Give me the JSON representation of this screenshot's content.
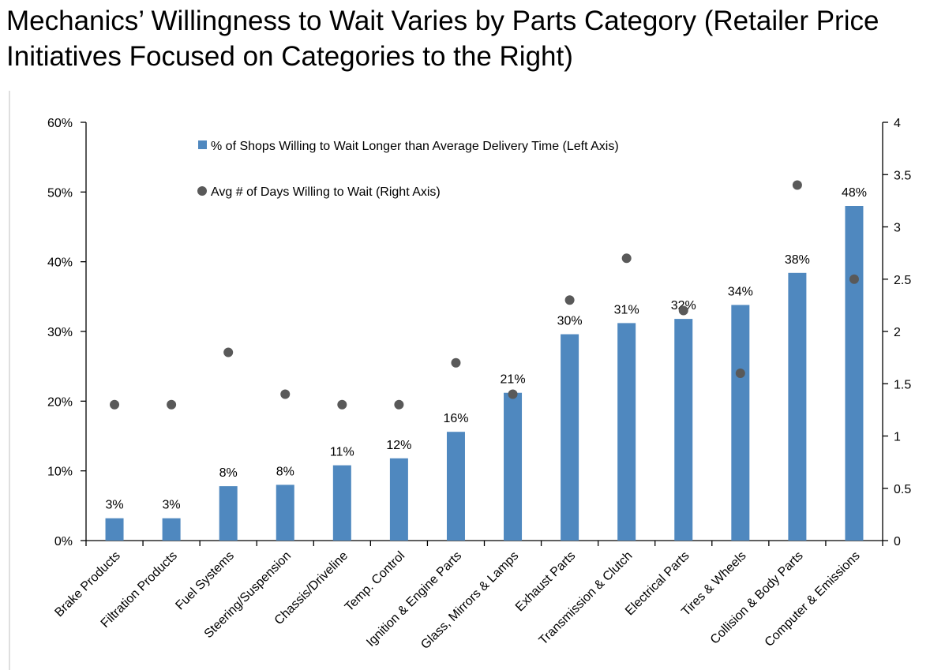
{
  "chart_data": {
    "type": "bar",
    "title": "Mechanics’ Willingness to Wait Varies by Parts Category (Retailer Price Initiatives Focused on Categories to the Right)",
    "categories": [
      "Brake Products",
      "Filtration Products",
      "Fuel Systems",
      "Steering/Suspension",
      "Chassis/Driveline",
      "Temp. Control",
      "Ignition & Engine Parts",
      "Glass, Mirrors & Lamps",
      "Exhaust Parts",
      "Transmission & Clutch",
      "Electrical Parts",
      "Tires & Wheels",
      "Collision & Body Parts",
      "Computer & Emissions"
    ],
    "series": [
      {
        "name": "% of Shops Willing to Wait Longer than Average Delivery Time (Left Axis)",
        "kind": "bar",
        "axis": "left",
        "values": [
          3.2,
          3.2,
          7.8,
          8.0,
          10.8,
          11.8,
          15.6,
          21.2,
          29.6,
          31.2,
          31.8,
          33.8,
          38.4,
          48.0
        ],
        "labels": [
          "3%",
          "3%",
          "8%",
          "8%",
          "11%",
          "12%",
          "16%",
          "21%",
          "30%",
          "31%",
          "32%",
          "34%",
          "38%",
          "48%"
        ],
        "color": "#4f88bf"
      },
      {
        "name": "Avg # of Days Willing to Wait (Right Axis)",
        "kind": "scatter",
        "axis": "right",
        "values": [
          1.3,
          1.3,
          1.8,
          1.4,
          1.3,
          1.3,
          1.7,
          1.4,
          2.3,
          2.7,
          2.2,
          1.6,
          3.4,
          2.5
        ],
        "color": "#595959"
      }
    ],
    "left_axis": {
      "min": 0,
      "max": 60,
      "ticks": [
        0,
        10,
        20,
        30,
        40,
        50,
        60
      ],
      "tick_labels": [
        "0%",
        "10%",
        "20%",
        "30%",
        "40%",
        "50%",
        "60%"
      ]
    },
    "right_axis": {
      "min": 0,
      "max": 4,
      "ticks": [
        0,
        0.5,
        1,
        1.5,
        2,
        2.5,
        3,
        3.5,
        4
      ],
      "tick_labels": [
        "0",
        "0.5",
        "1",
        "1.5",
        "2",
        "2.5",
        "3",
        "3.5",
        "4"
      ]
    },
    "grid": false,
    "legend_position": "top-left"
  }
}
